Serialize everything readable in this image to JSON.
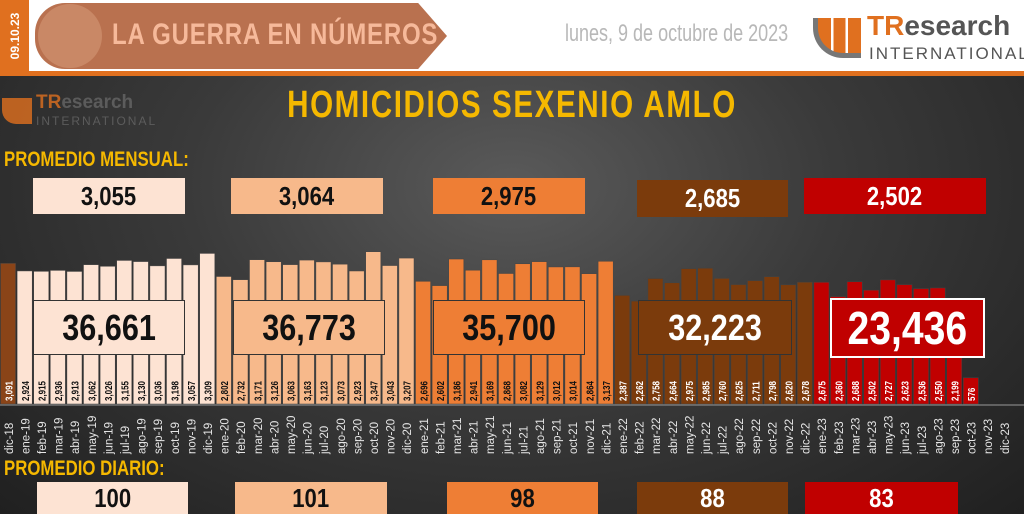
{
  "header": {
    "date_code": "09.10.23",
    "banner_title": "LA GUERRA EN NÚMEROS",
    "date_text": "lunes, 9 de octubre de 2023",
    "logo": "TResearch INTERNATIONAL"
  },
  "colors": {
    "period_2019": "#fde3d3",
    "period_2020": "#f7b98b",
    "period_2021": "#ee7e35",
    "period_2022": "#7b3b0c",
    "period_2023": "#c00000",
    "first_bar": "#8a4418",
    "accent": "#f5b800"
  },
  "labels": {
    "monthly_avg": "PROMEDIO MENSUAL:",
    "daily_avg": "PROMEDIO DIARIO:"
  },
  "chart_data": {
    "type": "bar",
    "title": "HOMICIDIOS SEXENIO AMLO",
    "categories": [
      "dic-18",
      "ene-19",
      "feb-19",
      "mar-19",
      "abr-19",
      "may-19",
      "jun-19",
      "jul-19",
      "ago-19",
      "sep-19",
      "oct-19",
      "nov-19",
      "dic-19",
      "ene-20",
      "feb-20",
      "mar-20",
      "abr-20",
      "may-20",
      "jun-20",
      "jul-20",
      "ago-20",
      "sep-20",
      "oct-20",
      "nov-20",
      "dic-20",
      "ene-21",
      "feb-21",
      "mar-21",
      "abr-21",
      "may-21",
      "jun-21",
      "jul-21",
      "ago-21",
      "sep-21",
      "oct-21",
      "nov-21",
      "dic-21",
      "ene-22",
      "feb-22",
      "mar-22",
      "abr-22",
      "may-22",
      "jun-22",
      "jul-22",
      "ago-22",
      "sep-22",
      "oct-22",
      "nov-22",
      "dic-22",
      "ene-23",
      "feb-23",
      "mar-23",
      "abr-23",
      "may-23",
      "jun-23",
      "jul-23",
      "ago-23",
      "sep-23",
      "oct-23",
      "nov-23",
      "dic-23"
    ],
    "values": [
      3091,
      2924,
      2915,
      2936,
      2913,
      3062,
      3026,
      3155,
      3130,
      3036,
      3198,
      3057,
      3309,
      2802,
      2732,
      3171,
      3126,
      3063,
      3163,
      3123,
      3073,
      2923,
      3347,
      3043,
      3207,
      2696,
      2602,
      3186,
      2941,
      3169,
      2868,
      3082,
      3129,
      3012,
      3014,
      2864,
      3137,
      2387,
      2262,
      2758,
      2664,
      2975,
      2985,
      2760,
      2625,
      2711,
      2798,
      2620,
      2678,
      2675,
      2360,
      2688,
      2502,
      2727,
      2623,
      2536,
      2550,
      2199,
      576,
      null,
      null
    ],
    "value_labels": [
      "3,091",
      "2,924",
      "2,915",
      "2,936",
      "2,913",
      "3,062",
      "3,026",
      "3,155",
      "3,130",
      "3,036",
      "3,198",
      "3,057",
      "3,309",
      "2,802",
      "2,732",
      "3,171",
      "3,126",
      "3,063",
      "3,163",
      "3,123",
      "3,073",
      "2,923",
      "3,347",
      "3,043",
      "3,207",
      "2,696",
      "2,602",
      "3,186",
      "2,941",
      "3,169",
      "2,868",
      "3,082",
      "3,129",
      "3,012",
      "3,014",
      "2,864",
      "3,137",
      "2,387",
      "2,262",
      "2,758",
      "2,664",
      "2,975",
      "2,985",
      "2,760",
      "2,625",
      "2,711",
      "2,798",
      "2,620",
      "2,678",
      "2,675",
      "2,360",
      "2,688",
      "2,502",
      "2,727",
      "2,623",
      "2,536",
      "2,550",
      "2,199",
      "576",
      "",
      ""
    ],
    "periods": [
      {
        "year": "2019",
        "monthly_avg": "3,055",
        "total": "36,661",
        "daily_avg": "100"
      },
      {
        "year": "2020",
        "monthly_avg": "3,064",
        "total": "36,773",
        "daily_avg": "101"
      },
      {
        "year": "2021",
        "monthly_avg": "2,975",
        "total": "35,700",
        "daily_avg": "98"
      },
      {
        "year": "2022",
        "monthly_avg": "2,685",
        "total": "32,223",
        "daily_avg": "88"
      },
      {
        "year": "2023",
        "monthly_avg": "2,502",
        "total": "23,436",
        "daily_avg": "83"
      }
    ],
    "grid": false
  }
}
